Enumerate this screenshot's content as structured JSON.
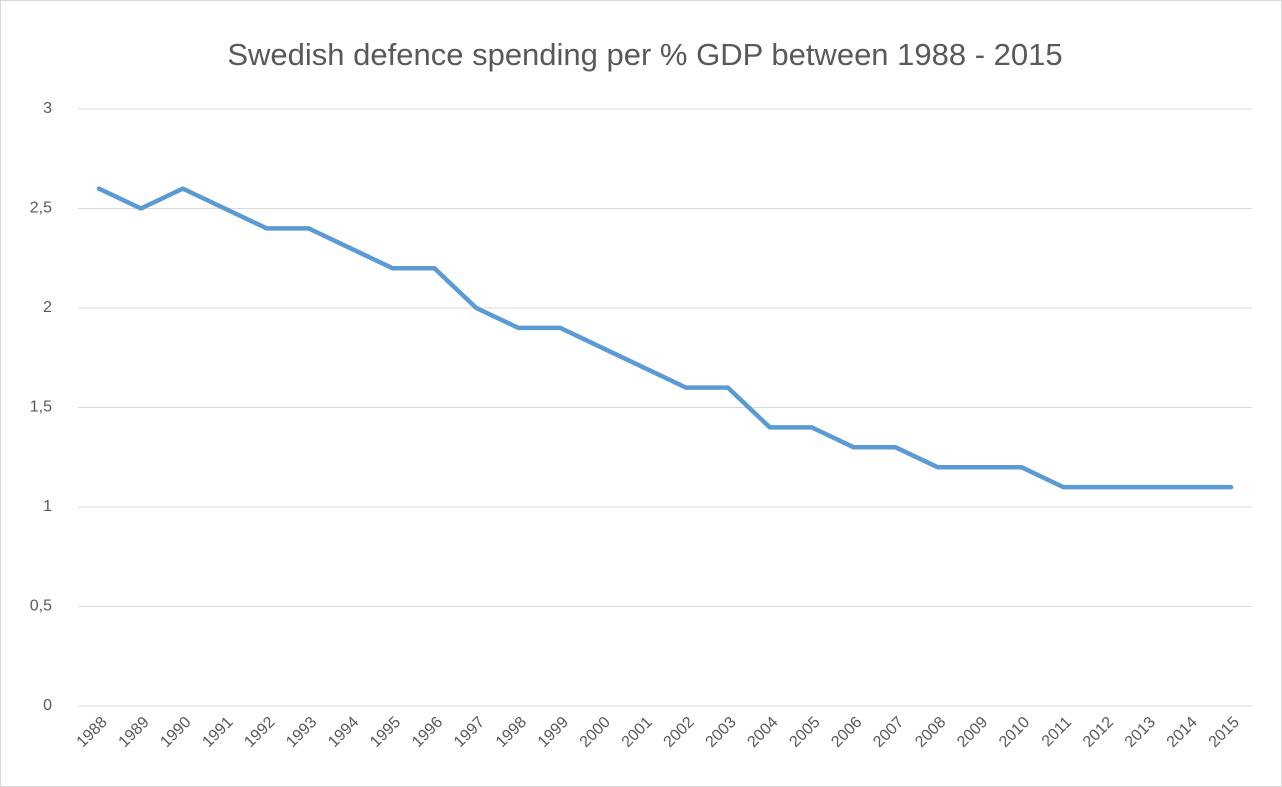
{
  "chart_data": {
    "type": "line",
    "title": "Swedish defence spending per % GDP between 1988 - 2015",
    "categories": [
      "1988",
      "1989",
      "1990",
      "1991",
      "1992",
      "1993",
      "1994",
      "1995",
      "1996",
      "1997",
      "1998",
      "1999",
      "2000",
      "2001",
      "2002",
      "2003",
      "2004",
      "2005",
      "2006",
      "2007",
      "2008",
      "2009",
      "2010",
      "2011",
      "2012",
      "2013",
      "2014",
      "2015"
    ],
    "series": [
      {
        "color": "#5b9bd5",
        "values": [
          2.6,
          2.5,
          2.6,
          2.5,
          2.4,
          2.4,
          2.3,
          2.2,
          2.2,
          2.0,
          1.9,
          1.9,
          1.8,
          1.7,
          1.6,
          1.6,
          1.4,
          1.4,
          1.3,
          1.3,
          1.2,
          1.2,
          1.2,
          1.1,
          1.1,
          1.1,
          1.1,
          1.1
        ]
      }
    ],
    "ylim": [
      0,
      3
    ],
    "yticks": [
      0,
      {
        "value": 0.5,
        "label": "0,5"
      },
      1,
      {
        "value": 1.5,
        "label": "1,5"
      },
      2,
      {
        "value": 2.5,
        "label": "2,5"
      },
      3
    ],
    "grid": true
  }
}
